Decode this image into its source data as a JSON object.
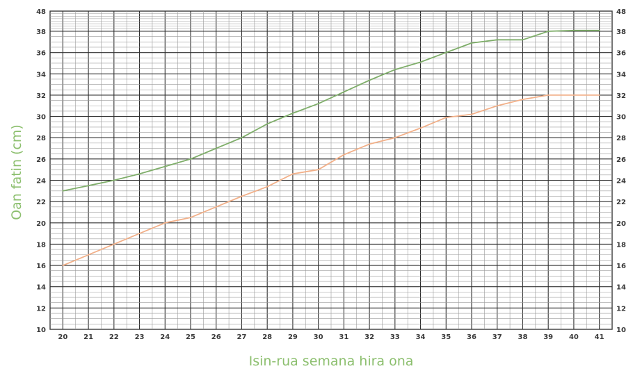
{
  "chart_data": {
    "type": "line",
    "xlabel": "Isin-rua semana hira ona",
    "ylabel": "Oan fatin (cm)",
    "xlim": [
      20,
      41
    ],
    "ylim": [
      10,
      48
    ],
    "x_ticks": [
      "20",
      "21",
      "22",
      "23",
      "24",
      "25",
      "26",
      "27",
      "28",
      "29",
      "30",
      "31",
      "32",
      "33",
      "34",
      "35",
      "36",
      "37",
      "38",
      "39",
      "40",
      "41"
    ],
    "y_ticks_left": [
      "10",
      "12",
      "14",
      "16",
      "18",
      "20",
      "22",
      "24",
      "26",
      "28",
      "30",
      "32",
      "34",
      "36",
      "38",
      "48"
    ],
    "y_ticks_right": [
      "10",
      "12",
      "14",
      "16",
      "18",
      "20",
      "22",
      "24",
      "26",
      "28",
      "30",
      "32",
      "34",
      "36",
      "38",
      "48"
    ],
    "grid": true,
    "series": [
      {
        "color": "#7fae6a",
        "x": [
          20,
          21,
          22,
          23,
          24,
          25,
          26,
          27,
          28,
          29,
          30,
          31,
          32,
          33,
          34,
          35,
          36,
          37,
          38,
          39,
          40,
          41
        ],
        "y": [
          23,
          23.5,
          24,
          24.6,
          25.3,
          26,
          27,
          28,
          29.3,
          30.3,
          31.2,
          32.3,
          33.4,
          34.4,
          35.1,
          36,
          36.9,
          37.2,
          37.2,
          38,
          38.4,
          38.4
        ]
      },
      {
        "color": "#f2b089",
        "x": [
          20,
          21,
          22,
          23,
          24,
          25,
          26,
          27,
          28,
          29,
          30,
          31,
          32,
          33,
          34,
          35,
          36,
          37,
          38,
          39,
          40,
          41
        ],
        "y": [
          16,
          17,
          18,
          19,
          20,
          20.5,
          21.5,
          22.5,
          23.4,
          24.6,
          25,
          26.4,
          27.4,
          28,
          28.9,
          29.9,
          30.2,
          31,
          31.6,
          32,
          32,
          32
        ]
      }
    ]
  }
}
